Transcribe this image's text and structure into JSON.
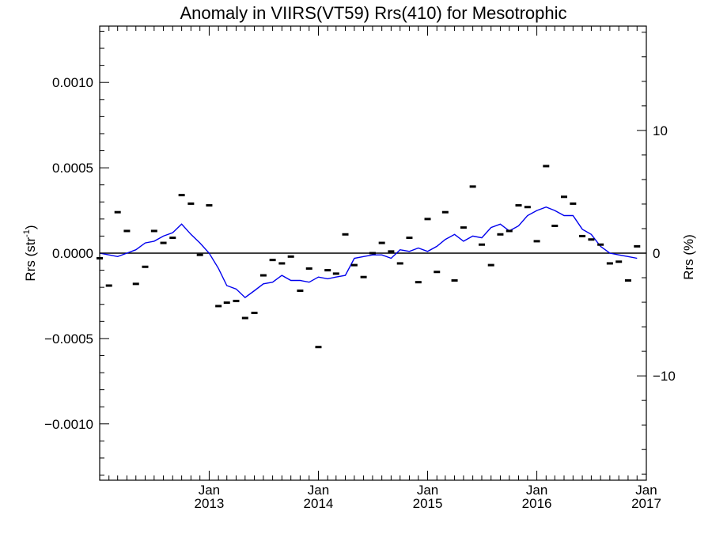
{
  "chart_data": {
    "type": "scatter",
    "title": "Anomaly in VIIRS(VT59) Rrs(410) for Mesotrophic",
    "ylabel_left": "Rrs (str",
    "ylabel_left_sup": "-1",
    "ylabel_left_end": ")",
    "ylabel_right": "Rrs (%)",
    "xlim": [
      "2012-01-01",
      "2017-01-01"
    ],
    "ylim_left": [
      -0.00133,
      0.00133
    ],
    "ylim_right": [
      -18.5,
      18.5
    ],
    "x_ticks": [
      {
        "date": "2013-01-01",
        "label_top": "Jan",
        "label_bottom": "2013"
      },
      {
        "date": "2014-01-01",
        "label_top": "Jan",
        "label_bottom": "2014"
      },
      {
        "date": "2015-01-01",
        "label_top": "Jan",
        "label_bottom": "2015"
      },
      {
        "date": "2016-01-01",
        "label_top": "Jan",
        "label_bottom": "2016"
      },
      {
        "date": "2017-01-01",
        "label_top": "Jan",
        "label_bottom": "2017"
      }
    ],
    "y_ticks_left": [
      {
        "value": 0.001,
        "label": "0.0010"
      },
      {
        "value": 0.0005,
        "label": "0.0005"
      },
      {
        "value": 0.0,
        "label": "0.0000"
      },
      {
        "value": -0.0005,
        "label": "−0.0005"
      },
      {
        "value": -0.001,
        "label": "−0.0010"
      }
    ],
    "y_ticks_right": [
      {
        "value": 10,
        "label": "10"
      },
      {
        "value": 0,
        "label": "0"
      },
      {
        "value": -10,
        "label": "−10"
      }
    ],
    "zero_line": true,
    "colors": {
      "points": "#000000",
      "running_mean": "#0000ee",
      "zero_line": "#000000"
    },
    "series": [
      {
        "kind": "monthly_anomaly_points",
        "points": [
          {
            "x": "2012-01-01",
            "y": -3e-05
          },
          {
            "x": "2012-02-01",
            "y": -0.00019
          },
          {
            "x": "2012-03-01",
            "y": 0.00024
          },
          {
            "x": "2012-04-01",
            "y": 0.00013
          },
          {
            "x": "2012-05-01",
            "y": -0.00018
          },
          {
            "x": "2012-06-01",
            "y": -8e-05
          },
          {
            "x": "2012-07-01",
            "y": 0.00013
          },
          {
            "x": "2012-08-01",
            "y": 6e-05
          },
          {
            "x": "2012-09-01",
            "y": 9e-05
          },
          {
            "x": "2012-10-01",
            "y": 0.00034
          },
          {
            "x": "2012-11-01",
            "y": 0.00029
          },
          {
            "x": "2012-12-01",
            "y": -1e-05
          },
          {
            "x": "2013-01-01",
            "y": 0.00028
          },
          {
            "x": "2013-02-01",
            "y": -0.00031
          },
          {
            "x": "2013-03-01",
            "y": -0.00029
          },
          {
            "x": "2013-04-01",
            "y": -0.00028
          },
          {
            "x": "2013-05-01",
            "y": -0.00038
          },
          {
            "x": "2013-06-01",
            "y": -0.00035
          },
          {
            "x": "2013-07-01",
            "y": -0.00013
          },
          {
            "x": "2013-08-01",
            "y": -4e-05
          },
          {
            "x": "2013-09-01",
            "y": -6e-05
          },
          {
            "x": "2013-10-01",
            "y": -2e-05
          },
          {
            "x": "2013-11-01",
            "y": -0.00022
          },
          {
            "x": "2013-12-01",
            "y": -9e-05
          },
          {
            "x": "2014-01-01",
            "y": -0.00055
          },
          {
            "x": "2014-02-01",
            "y": -0.0001
          },
          {
            "x": "2014-03-01",
            "y": -0.00012
          },
          {
            "x": "2014-04-01",
            "y": 0.00011
          },
          {
            "x": "2014-05-01",
            "y": -7e-05
          },
          {
            "x": "2014-06-01",
            "y": -0.00014
          },
          {
            "x": "2014-07-01",
            "y": 0.0
          },
          {
            "x": "2014-08-01",
            "y": 6e-05
          },
          {
            "x": "2014-09-01",
            "y": 1e-05
          },
          {
            "x": "2014-10-01",
            "y": -6e-05
          },
          {
            "x": "2014-11-01",
            "y": 9e-05
          },
          {
            "x": "2014-12-01",
            "y": -0.00017
          },
          {
            "x": "2015-01-01",
            "y": 0.0002
          },
          {
            "x": "2015-02-01",
            "y": -0.00011
          },
          {
            "x": "2015-03-01",
            "y": 0.00024
          },
          {
            "x": "2015-04-01",
            "y": -0.00016
          },
          {
            "x": "2015-05-01",
            "y": 0.00015
          },
          {
            "x": "2015-06-01",
            "y": 0.00039
          },
          {
            "x": "2015-07-01",
            "y": 5e-05
          },
          {
            "x": "2015-08-01",
            "y": -7e-05
          },
          {
            "x": "2015-09-01",
            "y": 0.00011
          },
          {
            "x": "2015-10-01",
            "y": 0.00013
          },
          {
            "x": "2015-11-01",
            "y": 0.00028
          },
          {
            "x": "2015-12-01",
            "y": 0.00027
          },
          {
            "x": "2016-01-01",
            "y": 7e-05
          },
          {
            "x": "2016-02-01",
            "y": 0.00051
          },
          {
            "x": "2016-03-01",
            "y": 0.00016
          },
          {
            "x": "2016-04-01",
            "y": 0.00033
          },
          {
            "x": "2016-05-01",
            "y": 0.00029
          },
          {
            "x": "2016-06-01",
            "y": 0.0001
          },
          {
            "x": "2016-07-01",
            "y": 8e-05
          },
          {
            "x": "2016-08-01",
            "y": 5e-05
          },
          {
            "x": "2016-09-01",
            "y": -6e-05
          },
          {
            "x": "2016-10-01",
            "y": -5e-05
          },
          {
            "x": "2016-11-01",
            "y": -0.00016
          },
          {
            "x": "2016-12-01",
            "y": 4e-05
          }
        ]
      },
      {
        "kind": "running_mean_line",
        "points": [
          {
            "x": "2012-01-01",
            "y": 0.0
          },
          {
            "x": "2012-02-01",
            "y": -1e-05
          },
          {
            "x": "2012-03-01",
            "y": -2e-05
          },
          {
            "x": "2012-04-01",
            "y": 0.0
          },
          {
            "x": "2012-05-01",
            "y": 2e-05
          },
          {
            "x": "2012-06-01",
            "y": 6e-05
          },
          {
            "x": "2012-07-01",
            "y": 7e-05
          },
          {
            "x": "2012-08-01",
            "y": 0.0001
          },
          {
            "x": "2012-09-01",
            "y": 0.00012
          },
          {
            "x": "2012-10-01",
            "y": 0.00017
          },
          {
            "x": "2012-11-01",
            "y": 0.00011
          },
          {
            "x": "2012-12-01",
            "y": 6e-05
          },
          {
            "x": "2013-01-01",
            "y": 0.0
          },
          {
            "x": "2013-02-01",
            "y": -9e-05
          },
          {
            "x": "2013-03-01",
            "y": -0.00019
          },
          {
            "x": "2013-04-01",
            "y": -0.00021
          },
          {
            "x": "2013-05-01",
            "y": -0.00026
          },
          {
            "x": "2013-06-01",
            "y": -0.00022
          },
          {
            "x": "2013-07-01",
            "y": -0.00018
          },
          {
            "x": "2013-08-01",
            "y": -0.00017
          },
          {
            "x": "2013-09-01",
            "y": -0.00013
          },
          {
            "x": "2013-10-01",
            "y": -0.00016
          },
          {
            "x": "2013-11-01",
            "y": -0.00016
          },
          {
            "x": "2013-12-01",
            "y": -0.00017
          },
          {
            "x": "2014-01-01",
            "y": -0.00014
          },
          {
            "x": "2014-02-01",
            "y": -0.00015
          },
          {
            "x": "2014-03-01",
            "y": -0.00014
          },
          {
            "x": "2014-04-01",
            "y": -0.00013
          },
          {
            "x": "2014-05-01",
            "y": -3e-05
          },
          {
            "x": "2014-06-01",
            "y": -2e-05
          },
          {
            "x": "2014-07-01",
            "y": -1e-05
          },
          {
            "x": "2014-08-01",
            "y": -1e-05
          },
          {
            "x": "2014-09-01",
            "y": -3e-05
          },
          {
            "x": "2014-10-01",
            "y": 2e-05
          },
          {
            "x": "2014-11-01",
            "y": 1e-05
          },
          {
            "x": "2014-12-01",
            "y": 3e-05
          },
          {
            "x": "2015-01-01",
            "y": 1e-05
          },
          {
            "x": "2015-02-01",
            "y": 4e-05
          },
          {
            "x": "2015-03-01",
            "y": 8e-05
          },
          {
            "x": "2015-04-01",
            "y": 0.00011
          },
          {
            "x": "2015-05-01",
            "y": 7e-05
          },
          {
            "x": "2015-06-01",
            "y": 0.0001
          },
          {
            "x": "2015-07-01",
            "y": 9e-05
          },
          {
            "x": "2015-08-01",
            "y": 0.00015
          },
          {
            "x": "2015-09-01",
            "y": 0.00017
          },
          {
            "x": "2015-10-01",
            "y": 0.00013
          },
          {
            "x": "2015-11-01",
            "y": 0.00016
          },
          {
            "x": "2015-12-01",
            "y": 0.00022
          },
          {
            "x": "2016-01-01",
            "y": 0.00025
          },
          {
            "x": "2016-02-01",
            "y": 0.00027
          },
          {
            "x": "2016-03-01",
            "y": 0.00025
          },
          {
            "x": "2016-04-01",
            "y": 0.00022
          },
          {
            "x": "2016-05-01",
            "y": 0.00022
          },
          {
            "x": "2016-06-01",
            "y": 0.00014
          },
          {
            "x": "2016-07-01",
            "y": 0.00011
          },
          {
            "x": "2016-08-01",
            "y": 4e-05
          },
          {
            "x": "2016-09-01",
            "y": 0.0
          },
          {
            "x": "2016-10-01",
            "y": -1e-05
          },
          {
            "x": "2016-11-01",
            "y": -2e-05
          },
          {
            "x": "2016-12-01",
            "y": -3e-05
          }
        ]
      }
    ]
  }
}
